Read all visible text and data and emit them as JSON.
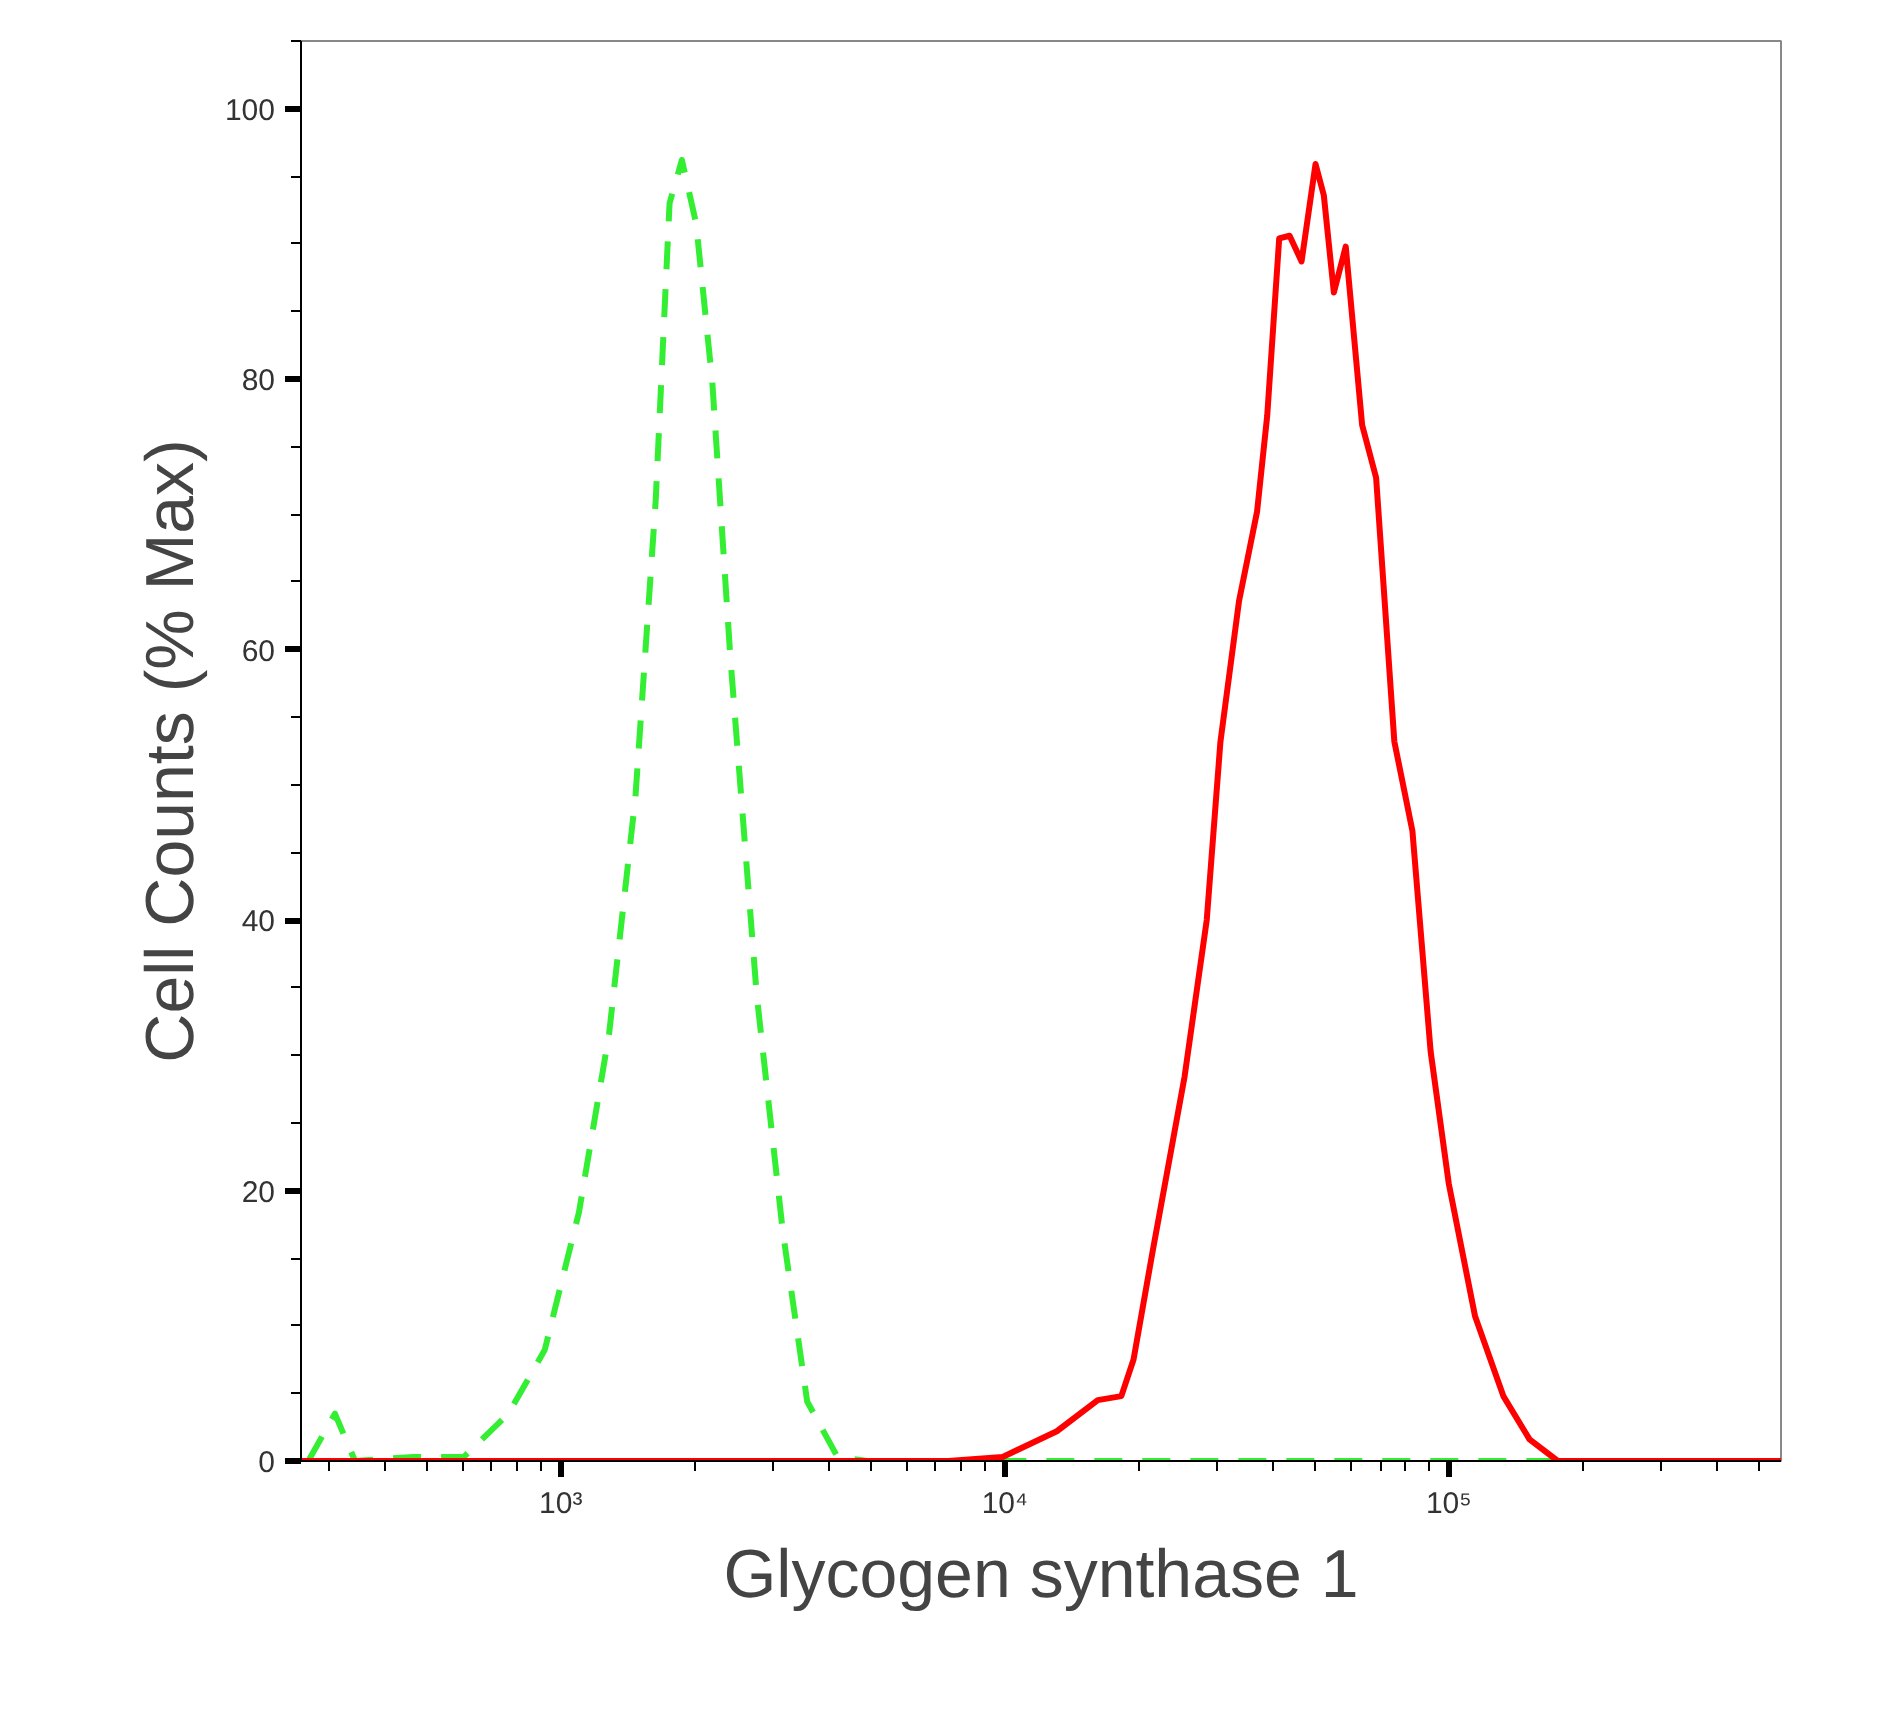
{
  "chart_data": {
    "type": "line",
    "xlabel": "Glycogen synthase 1",
    "ylabel": "Cell Counts (% Max)",
    "log": "x",
    "grid": false,
    "xlim": [
      260,
      560000
    ],
    "ylim": [
      0,
      105
    ],
    "xticks": [
      {
        "value": 1000,
        "label": "10³"
      },
      {
        "value": 10000,
        "label": "10⁴"
      },
      {
        "value": 100000,
        "label": "10⁵"
      }
    ],
    "yticks": [
      0,
      20,
      40,
      60,
      80,
      100
    ],
    "series": [
      {
        "color": "#33ee33",
        "line_style": "dashed",
        "x": [
          270,
          310,
          344,
          466,
          605,
          762,
          920,
          1099,
          1285,
          1473,
          1636,
          1758,
          1874,
          2018,
          2194,
          2410,
          2762,
          3162,
          3589,
          4200,
          4900,
          190000
        ],
        "values": [
          0,
          3.5,
          0,
          0.3,
          0.3,
          3.5,
          8.2,
          18.4,
          31.6,
          49.1,
          71,
          93,
          96.2,
          91.5,
          79.8,
          59.4,
          34.5,
          17,
          4.4,
          0.3,
          0,
          0
        ]
      },
      {
        "color": "#ff0000",
        "line_style": "solid",
        "x": [
          260,
          7460,
          9890,
          13100,
          16200,
          18300,
          19500,
          21500,
          25400,
          28500,
          30600,
          33700,
          37000,
          39000,
          41500,
          43800,
          46600,
          50100,
          52300,
          55100,
          58600,
          63800,
          68600,
          75400,
          82800,
          91000,
          100000,
          114600,
          132700,
          152000,
          176000,
          560000
        ],
        "values": [
          0,
          0,
          0.3,
          2.2,
          4.5,
          4.8,
          7.5,
          15.4,
          28.4,
          40,
          53.2,
          63.6,
          70.2,
          77.3,
          90.4,
          90.6,
          88.7,
          95.9,
          93.6,
          86.4,
          89.8,
          76.6,
          72.7,
          53.2,
          46.6,
          30.3,
          20.5,
          10.7,
          4.8,
          1.6,
          0,
          0
        ]
      }
    ]
  }
}
